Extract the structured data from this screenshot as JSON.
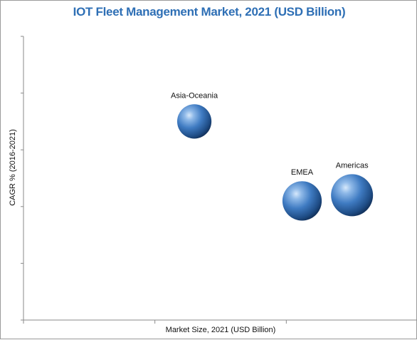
{
  "chart_data": {
    "type": "bubble",
    "title": "IOT Fleet Management Market, 2021 (USD Billion)",
    "xlabel": "Market Size, 2021 (USD Billion)",
    "ylabel": "CAGR % (2016-2021)",
    "xlim": [
      0,
      3
    ],
    "ylim": [
      0,
      5
    ],
    "grid": false,
    "series": [
      {
        "name": "Asia-Oceania",
        "x": 1.3,
        "y": 3.5,
        "size": 1.6
      },
      {
        "name": "Americas",
        "x": 2.5,
        "y": 2.2,
        "size": 2.4
      },
      {
        "name": "EMEA",
        "x": 2.12,
        "y": 2.1,
        "size": 2.1
      }
    ],
    "colors": {
      "bubble": "#3a72b8",
      "title": "#2e6fb5",
      "axis": "#8a8a8a"
    }
  }
}
